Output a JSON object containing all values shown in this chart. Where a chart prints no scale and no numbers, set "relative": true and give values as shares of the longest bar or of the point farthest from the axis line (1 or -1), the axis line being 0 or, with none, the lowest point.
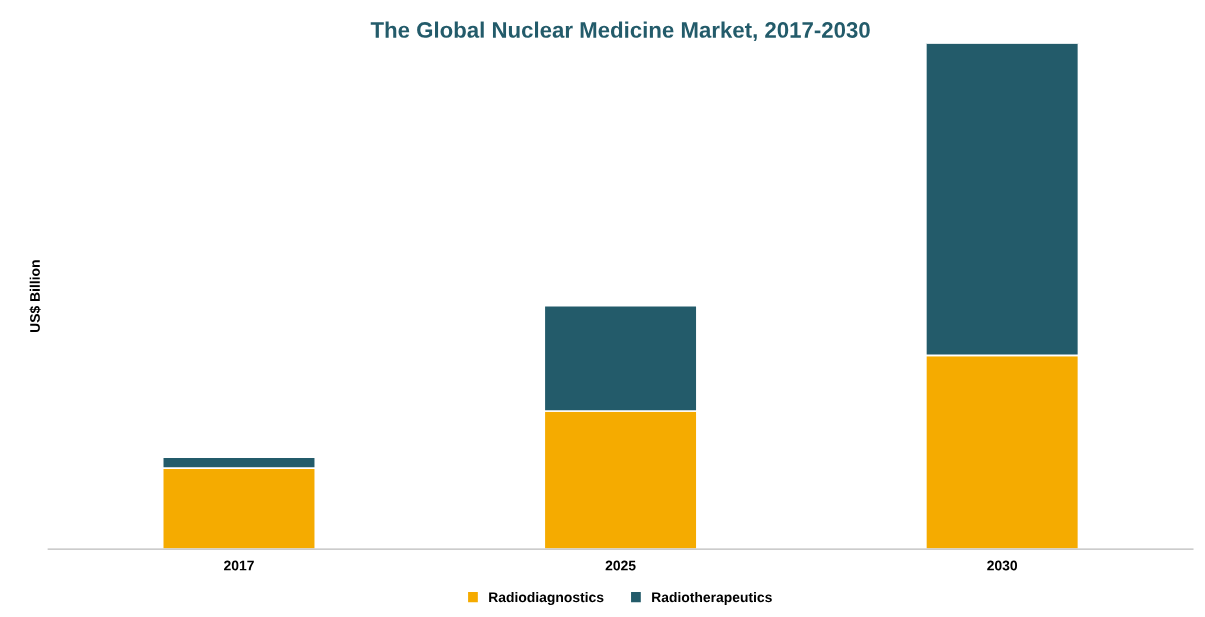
{
  "chart_data": {
    "type": "bar",
    "title": "The Global Nuclear Medicine Market, 2017-2030",
    "ylabel": "US$ Billion",
    "categories": [
      "2017",
      "2025",
      "2030"
    ],
    "stacked": true,
    "relative": true,
    "legend": "bottom",
    "grid": false,
    "series": [
      {
        "name": "Radiodiagnostics",
        "color": "#f5ab00",
        "values": [
          0.16,
          0.273,
          0.383
        ]
      },
      {
        "name": "Radiotherapeutics",
        "color": "#235b6a",
        "values": [
          0.022,
          0.208,
          0.617
        ]
      }
    ]
  }
}
